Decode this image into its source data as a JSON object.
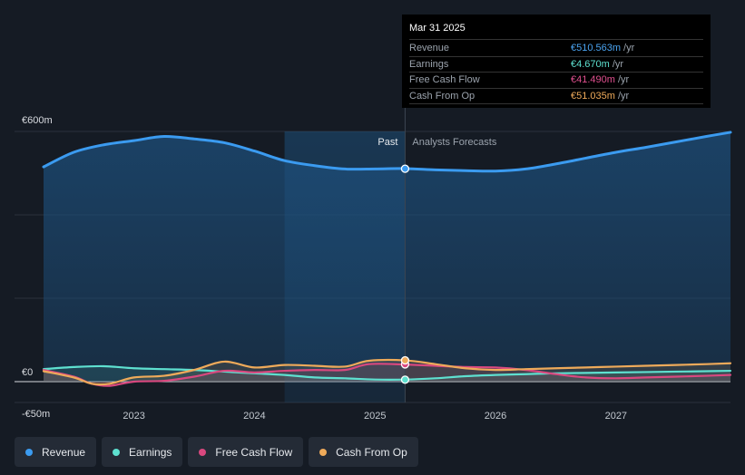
{
  "tooltip": {
    "date": "Mar 31 2025",
    "rows": [
      {
        "label": "Revenue",
        "value": "€510.563m",
        "unit": "/yr",
        "color": "#4aa3f0"
      },
      {
        "label": "Earnings",
        "value": "€4.670m",
        "unit": "/yr",
        "color": "#5ee0d0"
      },
      {
        "label": "Free Cash Flow",
        "value": "€41.490m",
        "unit": "/yr",
        "color": "#e0508f"
      },
      {
        "label": "Cash From Op",
        "value": "€51.035m",
        "unit": "/yr",
        "color": "#eeaa5a"
      }
    ]
  },
  "chart_data": {
    "type": "line",
    "title": "",
    "xlabel": "",
    "ylabel": "",
    "y_tick_labels": [
      "€600m",
      "€0",
      "-€50m"
    ],
    "y_ticks": [
      600,
      0,
      -50
    ],
    "ylim": [
      -50,
      600
    ],
    "x_tick_labels": [
      "2023",
      "2024",
      "2025",
      "2026",
      "2027"
    ],
    "x_ticks": [
      2023,
      2024,
      2025,
      2026,
      2027
    ],
    "xlim": [
      2022.25,
      2027.95
    ],
    "past_label": "Past",
    "forecast_label": "Analysts Forecasts",
    "divider_x": 2025.25,
    "highlight_start_x": 2024.25,
    "grid": true,
    "legend_position": "bottom-left",
    "series": [
      {
        "name": "Revenue",
        "color": "#3b9bf0",
        "x": [
          2022.25,
          2022.5,
          2022.75,
          2023.0,
          2023.25,
          2023.5,
          2023.75,
          2024.0,
          2024.25,
          2024.5,
          2024.75,
          2025.0,
          2025.25,
          2025.5,
          2025.75,
          2026.0,
          2026.25,
          2026.5,
          2026.75,
          2027.0,
          2027.25,
          2027.5,
          2027.75,
          2027.95
        ],
        "y": [
          515,
          550,
          568,
          578,
          588,
          582,
          573,
          553,
          530,
          518,
          510,
          510,
          511,
          508,
          506,
          505,
          510,
          522,
          536,
          550,
          562,
          575,
          588,
          598
        ]
      },
      {
        "name": "Earnings",
        "color": "#5ee0d0",
        "x": [
          2022.25,
          2022.5,
          2022.75,
          2023.0,
          2023.25,
          2023.5,
          2023.75,
          2024.0,
          2024.25,
          2024.5,
          2024.75,
          2025.0,
          2025.25,
          2025.5,
          2025.75,
          2026.0,
          2026.25,
          2026.5,
          2026.75,
          2027.0,
          2027.25,
          2027.5,
          2027.75,
          2027.95
        ],
        "y": [
          30,
          35,
          37,
          32,
          30,
          28,
          24,
          20,
          16,
          10,
          8,
          5,
          5,
          8,
          13,
          16,
          18,
          20,
          21,
          22,
          23,
          24,
          25,
          26
        ]
      },
      {
        "name": "Free Cash Flow",
        "color": "#d9487f",
        "x": [
          2022.25,
          2022.5,
          2022.65,
          2022.8,
          2023.0,
          2023.25,
          2023.5,
          2023.75,
          2024.0,
          2024.25,
          2024.5,
          2024.75,
          2024.95,
          2025.25,
          2025.5,
          2025.75,
          2026.0,
          2026.25,
          2026.5,
          2026.75,
          2027.0,
          2027.25,
          2027.5,
          2027.75,
          2027.95
        ],
        "y": [
          28,
          12,
          -5,
          -10,
          0,
          2,
          12,
          26,
          22,
          26,
          28,
          28,
          42,
          41,
          38,
          35,
          34,
          28,
          18,
          10,
          8,
          10,
          12,
          14,
          16
        ]
      },
      {
        "name": "Cash From Op",
        "color": "#eeaa5a",
        "x": [
          2022.25,
          2022.5,
          2022.65,
          2022.8,
          2023.0,
          2023.25,
          2023.5,
          2023.75,
          2024.0,
          2024.25,
          2024.5,
          2024.75,
          2024.95,
          2025.25,
          2025.5,
          2025.75,
          2026.0,
          2026.25,
          2026.5,
          2026.75,
          2027.0,
          2027.25,
          2027.5,
          2027.75,
          2027.95
        ],
        "y": [
          25,
          10,
          -5,
          -5,
          10,
          14,
          28,
          48,
          34,
          40,
          38,
          36,
          50,
          51,
          42,
          32,
          28,
          30,
          32,
          34,
          36,
          38,
          40,
          42,
          44
        ]
      }
    ],
    "highlight_points": [
      {
        "series": "Revenue",
        "x": 2025.25,
        "y": 510.563
      },
      {
        "series": "Earnings",
        "x": 2025.25,
        "y": 4.67
      },
      {
        "series": "Free Cash Flow",
        "x": 2025.25,
        "y": 41.49
      },
      {
        "series": "Cash From Op",
        "x": 2025.25,
        "y": 51.035
      }
    ]
  },
  "legend": [
    {
      "label": "Revenue",
      "color": "#3b9bf0"
    },
    {
      "label": "Earnings",
      "color": "#5ee0d0"
    },
    {
      "label": "Free Cash Flow",
      "color": "#d9487f"
    },
    {
      "label": "Cash From Op",
      "color": "#eeaa5a"
    }
  ]
}
